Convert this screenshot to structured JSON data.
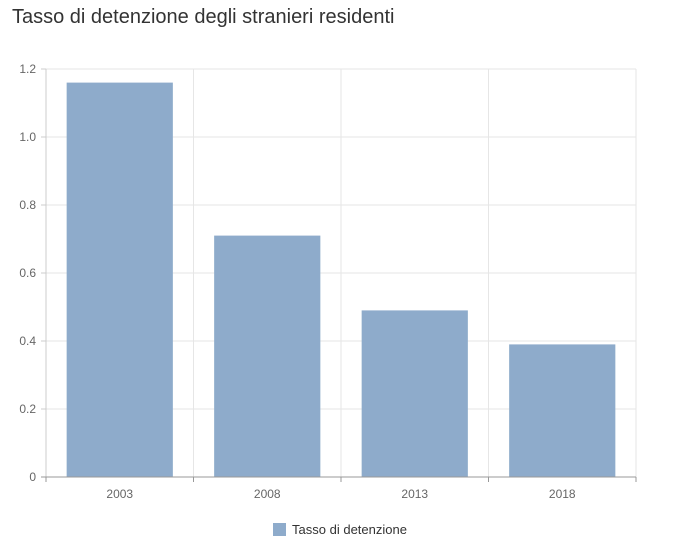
{
  "chart_data": {
    "type": "bar",
    "title": "Tasso di detenzione degli stranieri residenti",
    "xlabel": "",
    "ylabel": "",
    "categories": [
      "2003",
      "2008",
      "2013",
      "2018"
    ],
    "series": [
      {
        "name": "Tasso di detenzione",
        "values": [
          1.16,
          0.71,
          0.49,
          0.39
        ],
        "color": "#8eabcb"
      }
    ],
    "ylim": [
      0,
      1.2
    ],
    "yticks": [
      "0",
      "0.2",
      "0.4",
      "0.6",
      "0.8",
      "1.0",
      "1.2"
    ],
    "grid": true,
    "legend": "bottom-center"
  }
}
